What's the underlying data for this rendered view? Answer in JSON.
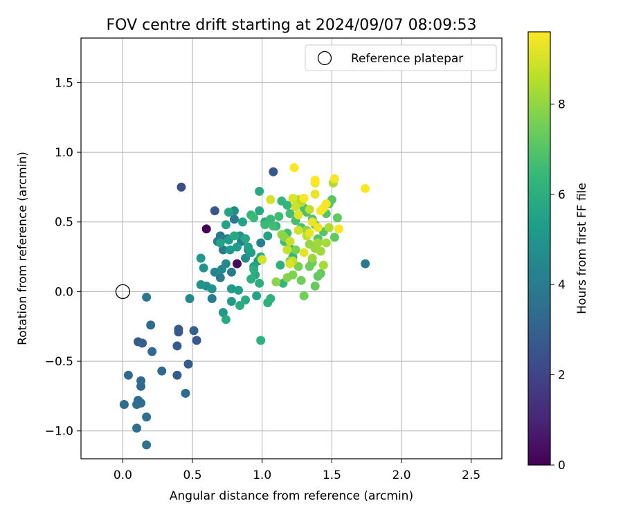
{
  "chart_data": {
    "type": "scatter",
    "title": "FOV centre drift starting at 2024/09/07 08:09:53",
    "xlabel": "Angular distance from reference (arcmin)",
    "ylabel": "Rotation from reference (arcmin)",
    "xlim": [
      -0.3,
      2.72
    ],
    "ylim": [
      -1.2,
      1.82
    ],
    "xticks": [
      "0.0",
      "0.5",
      "1.0",
      "1.5",
      "2.0",
      "2.5"
    ],
    "yticks": [
      "−1.0",
      "−0.5",
      "0.0",
      "0.5",
      "1.0",
      "1.5"
    ],
    "grid": true,
    "legend": {
      "position": "top-right",
      "entries": [
        "Reference platepar"
      ]
    },
    "reference": {
      "x": 0.0,
      "y": 0.0
    },
    "colorbar": {
      "label": "Hours from first FF file",
      "range": [
        0,
        9.6
      ],
      "ticks": [
        "0",
        "2",
        "4",
        "6",
        "8"
      ],
      "colormap": [
        "#440154",
        "#482878",
        "#3e4989",
        "#31688e",
        "#26828e",
        "#1f9e89",
        "#35b779",
        "#6ece58",
        "#b5de2b",
        "#fde725"
      ]
    },
    "points": [
      [
        0.6,
        0.45,
        0.1
      ],
      [
        0.82,
        0.2,
        0.3
      ],
      [
        0.42,
        0.75,
        2.3
      ],
      [
        0.66,
        0.58,
        2.6
      ],
      [
        1.08,
        0.86,
        2.6
      ],
      [
        0.4,
        -0.29,
        2.7
      ],
      [
        0.4,
        -0.27,
        2.7
      ],
      [
        0.39,
        -0.39,
        2.7
      ],
      [
        0.53,
        -0.35,
        2.7
      ],
      [
        0.47,
        -0.52,
        2.8
      ],
      [
        0.39,
        -0.6,
        2.8
      ],
      [
        0.11,
        -0.36,
        2.8
      ],
      [
        0.14,
        -0.37,
        2.9
      ],
      [
        0.51,
        -0.28,
        3.0
      ],
      [
        0.2,
        -0.24,
        3.3
      ],
      [
        0.21,
        -0.43,
        3.3
      ],
      [
        0.28,
        -0.57,
        3.3
      ],
      [
        0.13,
        -0.64,
        3.3
      ],
      [
        0.13,
        -0.68,
        3.2
      ],
      [
        0.04,
        -0.6,
        3.4
      ],
      [
        0.45,
        -0.73,
        3.4
      ],
      [
        0.11,
        -0.78,
        3.4
      ],
      [
        0.13,
        -0.8,
        3.4
      ],
      [
        0.01,
        -0.81,
        3.5
      ],
      [
        0.1,
        -0.81,
        3.5
      ],
      [
        0.17,
        -0.9,
        3.5
      ],
      [
        0.1,
        -0.98,
        3.5
      ],
      [
        0.17,
        -1.1,
        3.6
      ],
      [
        0.17,
        -0.04,
        3.8
      ],
      [
        1.74,
        0.2,
        3.9
      ],
      [
        0.7,
        0.4,
        3.8
      ],
      [
        0.75,
        0.38,
        3.8
      ],
      [
        0.8,
        0.52,
        3.9
      ],
      [
        0.72,
        0.3,
        4.0
      ],
      [
        0.68,
        0.36,
        3.9
      ],
      [
        0.78,
        0.14,
        4.0
      ],
      [
        0.7,
        0.1,
        4.0
      ],
      [
        0.64,
        -0.05,
        4.1
      ],
      [
        0.85,
        0.36,
        4.1
      ],
      [
        0.9,
        0.3,
        4.2
      ],
      [
        0.99,
        0.35,
        4.2
      ],
      [
        0.48,
        -0.05,
        4.5
      ],
      [
        0.66,
        0.14,
        4.4
      ],
      [
        0.71,
        0.16,
        4.5
      ],
      [
        0.8,
        0.58,
        4.6
      ],
      [
        0.74,
        0.2,
        4.6
      ],
      [
        0.88,
        0.24,
        4.7
      ],
      [
        0.84,
        0.4,
        4.8
      ],
      [
        0.6,
        0.04,
        4.8
      ],
      [
        0.56,
        0.05,
        4.9
      ],
      [
        0.64,
        0.02,
        5.0
      ],
      [
        0.58,
        0.17,
        5.0
      ],
      [
        0.56,
        0.24,
        5.1
      ],
      [
        0.72,
        -0.15,
        5.1
      ],
      [
        0.78,
        -0.07,
        5.2
      ],
      [
        0.78,
        0.02,
        5.2
      ],
      [
        0.77,
        0.3,
        5.3
      ],
      [
        0.76,
        0.37,
        5.3
      ],
      [
        0.82,
        0.32,
        5.3
      ],
      [
        0.92,
        0.28,
        5.3
      ],
      [
        0.94,
        0.18,
        5.4
      ],
      [
        0.97,
        0.22,
        5.4
      ],
      [
        0.83,
        0.01,
        5.4
      ],
      [
        0.96,
        -0.03,
        5.5
      ],
      [
        0.86,
        0.5,
        5.5
      ],
      [
        0.9,
        0.32,
        5.5
      ],
      [
        0.74,
        0.48,
        5.5
      ],
      [
        0.76,
        0.57,
        5.6
      ],
      [
        0.7,
        0.35,
        5.6
      ],
      [
        1.04,
        0.4,
        5.6
      ],
      [
        0.98,
        0.58,
        5.7
      ],
      [
        0.88,
        0.38,
        5.7
      ],
      [
        1.02,
        0.5,
        5.7
      ],
      [
        0.95,
        0.12,
        5.8
      ],
      [
        0.98,
        0.72,
        5.8
      ],
      [
        0.74,
        -0.2,
        5.8
      ],
      [
        0.8,
        0.4,
        5.8
      ],
      [
        0.84,
        -0.1,
        5.9
      ],
      [
        0.88,
        -0.06,
        5.9
      ],
      [
        0.92,
        0.09,
        6.0
      ],
      [
        0.94,
        0.16,
        6.0
      ],
      [
        0.99,
        0.25,
        6.0
      ],
      [
        0.98,
        0.06,
        6.0
      ],
      [
        0.99,
        -0.35,
        6.1
      ],
      [
        1.04,
        -0.08,
        6.1
      ],
      [
        1.06,
        -0.05,
        6.2
      ],
      [
        1.1,
        0.47,
        6.2
      ],
      [
        1.13,
        0.19,
        6.2
      ],
      [
        1.14,
        0.65,
        6.3
      ],
      [
        1.15,
        0.06,
        6.3
      ],
      [
        1.18,
        0.62,
        6.3
      ],
      [
        1.2,
        0.31,
        6.4
      ],
      [
        1.22,
        0.25,
        6.4
      ],
      [
        0.92,
        0.55,
        6.4
      ],
      [
        0.94,
        0.53,
        6.5
      ],
      [
        1.02,
        0.48,
        6.5
      ],
      [
        1.06,
        0.52,
        6.5
      ],
      [
        1.08,
        0.47,
        6.6
      ],
      [
        1.12,
        0.54,
        6.6
      ],
      [
        1.16,
        0.36,
        6.6
      ],
      [
        1.18,
        0.42,
        6.7
      ],
      [
        1.2,
        0.56,
        6.7
      ],
      [
        1.24,
        0.51,
        6.7
      ],
      [
        1.28,
        0.46,
        6.8
      ],
      [
        1.3,
        0.6,
        6.8
      ],
      [
        1.32,
        0.57,
        6.8
      ],
      [
        1.36,
        0.52,
        6.9
      ],
      [
        1.38,
        0.48,
        6.9
      ],
      [
        1.4,
        0.38,
        7.0
      ],
      [
        1.44,
        0.43,
        7.0
      ],
      [
        1.46,
        0.56,
        7.0
      ],
      [
        1.48,
        0.63,
        7.1
      ],
      [
        1.5,
        0.66,
        7.1
      ],
      [
        1.52,
        0.39,
        7.2
      ],
      [
        1.54,
        0.53,
        7.2
      ],
      [
        1.4,
        0.11,
        7.2
      ],
      [
        1.42,
        0.13,
        7.3
      ],
      [
        1.38,
        0.04,
        7.3
      ],
      [
        1.36,
        0.21,
        7.4
      ],
      [
        1.34,
        0.18,
        7.4
      ],
      [
        1.3,
        -0.03,
        7.5
      ],
      [
        1.28,
        0.08,
        7.5
      ],
      [
        1.26,
        0.18,
        7.6
      ],
      [
        1.24,
        0.3,
        7.6
      ],
      [
        1.22,
        0.12,
        7.7
      ],
      [
        1.2,
        0.22,
        7.7
      ],
      [
        1.18,
        0.1,
        7.8
      ],
      [
        1.16,
        0.39,
        7.8
      ],
      [
        1.14,
        0.41,
        7.9
      ],
      [
        1.1,
        0.07,
        7.9
      ],
      [
        1.32,
        0.44,
        8.0
      ],
      [
        1.34,
        0.34,
        8.0
      ],
      [
        1.36,
        0.24,
        8.1
      ],
      [
        1.38,
        0.31,
        8.1
      ],
      [
        1.4,
        0.35,
        8.2
      ],
      [
        1.42,
        0.29,
        8.2
      ],
      [
        1.44,
        0.19,
        8.3
      ],
      [
        1.46,
        0.35,
        8.3
      ],
      [
        1.48,
        0.46,
        8.4
      ],
      [
        1.51,
        0.78,
        8.4
      ],
      [
        1.26,
        0.66,
        8.5
      ],
      [
        1.28,
        0.64,
        8.5
      ],
      [
        1.3,
        0.67,
        8.6
      ],
      [
        1.32,
        0.4,
        8.6
      ],
      [
        1.34,
        0.59,
        8.7
      ],
      [
        1.22,
        0.22,
        8.7
      ],
      [
        1.2,
        0.36,
        8.8
      ],
      [
        1.18,
        0.3,
        8.8
      ],
      [
        1.24,
        0.61,
        8.9
      ],
      [
        1.26,
        0.44,
        8.9
      ],
      [
        1.0,
        0.23,
        9.0
      ],
      [
        1.06,
        0.66,
        9.0
      ],
      [
        1.2,
        0.2,
        9.1
      ],
      [
        1.22,
        0.67,
        9.1
      ],
      [
        1.26,
        0.55,
        9.2
      ],
      [
        1.3,
        0.28,
        9.2
      ],
      [
        1.34,
        0.42,
        9.3
      ],
      [
        1.36,
        0.5,
        9.3
      ],
      [
        1.38,
        0.7,
        9.3
      ],
      [
        1.38,
        0.78,
        9.4
      ],
      [
        1.4,
        0.46,
        9.4
      ],
      [
        1.44,
        0.6,
        9.4
      ],
      [
        1.46,
        0.63,
        9.5
      ],
      [
        1.52,
        0.81,
        9.5
      ],
      [
        1.55,
        0.45,
        9.5
      ],
      [
        1.74,
        0.74,
        9.6
      ],
      [
        1.23,
        0.89,
        9.6
      ],
      [
        1.3,
        0.67,
        9.6
      ],
      [
        1.38,
        0.8,
        9.6
      ],
      [
        1.42,
        0.58,
        9.6
      ]
    ]
  }
}
